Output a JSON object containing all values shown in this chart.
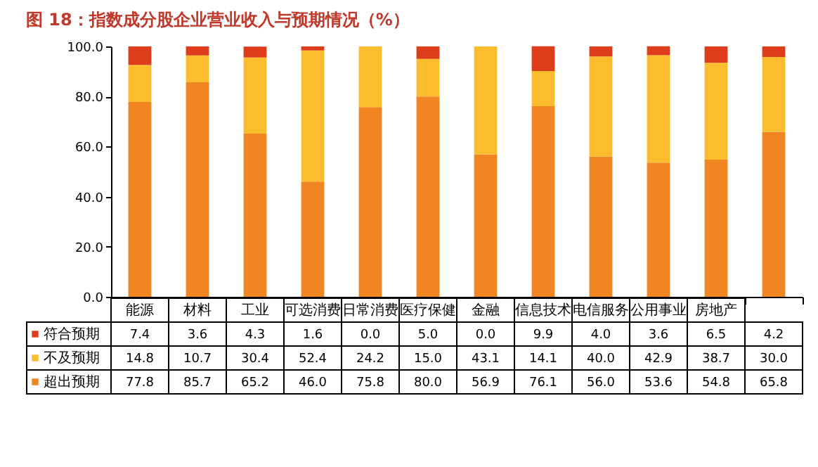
{
  "chart_data": {
    "type": "bar",
    "stacked": true,
    "title": "图 18：指数成分股企业营业收入与预期情况（%）",
    "categories": [
      "能源",
      "材料",
      "工业",
      "可选消费",
      "日常消费",
      "医疗保健",
      "金融",
      "信息技术",
      "电信服务",
      "公用事业",
      "房地产",
      null
    ],
    "series": [
      {
        "name": "超出预期",
        "color": "#f08522",
        "values": [
          77.8,
          85.7,
          65.2,
          46.0,
          75.8,
          80.0,
          56.9,
          76.1,
          56.0,
          53.6,
          54.8,
          65.8
        ],
        "value_labels": [
          "77.8",
          "85.7",
          "65.2",
          "46.0",
          "75.8",
          "80.0",
          "56.9",
          "76.1",
          "56.0",
          "53.6",
          "54.8",
          "65.8"
        ]
      },
      {
        "name": "不及预期",
        "color": "#fbbd2e",
        "values": [
          14.8,
          10.7,
          30.4,
          52.4,
          24.2,
          15.0,
          43.1,
          14.1,
          40.0,
          42.9,
          38.7,
          30.0
        ],
        "value_labels": [
          "14.8",
          "10.7",
          "30.4",
          "52.4",
          "24.2",
          "15.0",
          "43.1",
          "14.1",
          "40.0",
          "42.9",
          "38.7",
          "30.0"
        ]
      },
      {
        "name": "符合预期",
        "color": "#de3d1c",
        "values": [
          7.4,
          3.6,
          4.3,
          1.6,
          0.0,
          5.0,
          0.0,
          9.9,
          4.0,
          3.6,
          6.5,
          4.2
        ],
        "value_labels": [
          "7.4",
          "3.6",
          "4.3",
          "1.6",
          "0.0",
          "5.0",
          "0.0",
          "9.9",
          "4.0",
          "3.6",
          "6.5",
          "4.2"
        ]
      }
    ],
    "ylim": [
      0,
      100
    ],
    "yticks": [
      {
        "value": 0,
        "label": "0.0"
      },
      {
        "value": 20,
        "label": "20.0"
      },
      {
        "value": 40,
        "label": "40.0"
      },
      {
        "value": 60,
        "label": "60.0"
      },
      {
        "value": 80,
        "label": "80.0"
      },
      {
        "value": 100,
        "label": "100.0"
      }
    ],
    "grid": false,
    "legend": "bottom"
  }
}
